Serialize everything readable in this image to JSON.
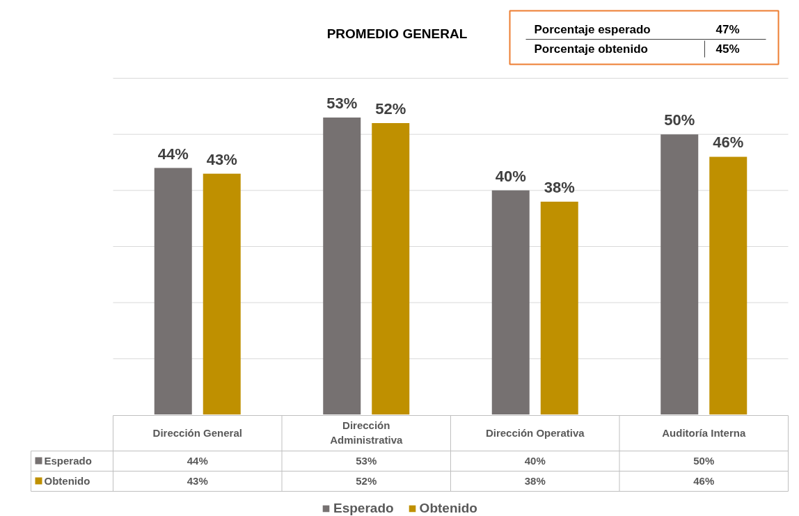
{
  "chart_data": {
    "type": "bar",
    "title": "PROMEDIO GENERAL",
    "categories": [
      "Dirección General",
      "Dirección Administrativa",
      "Dirección Operativa",
      "Auditoría Interna"
    ],
    "series": [
      {
        "name": "Esperado",
        "color": "#767171",
        "values": [
          44,
          53,
          40,
          50
        ],
        "value_labels": [
          "44%",
          "53%",
          "40%",
          "50%"
        ]
      },
      {
        "name": "Obtenido",
        "color": "#bf9000",
        "values": [
          43,
          52,
          38,
          46
        ],
        "value_labels": [
          "43%",
          "52%",
          "38%",
          "46%"
        ]
      }
    ],
    "yticks": [
      {
        "value": 0,
        "label": null
      },
      {
        "value": 10,
        "label": null
      },
      {
        "value": 20,
        "label": null
      },
      {
        "value": 30,
        "label": null
      },
      {
        "value": 40,
        "label": null
      },
      {
        "value": 50,
        "label": null
      },
      {
        "value": 60,
        "label": null
      }
    ],
    "grid": "y",
    "legend": "bottom",
    "tick_labels": "x",
    "annotations": [
      "Porcentaje esperado",
      "47%",
      "Porcentaje obtenido",
      "45%"
    ]
  }
}
